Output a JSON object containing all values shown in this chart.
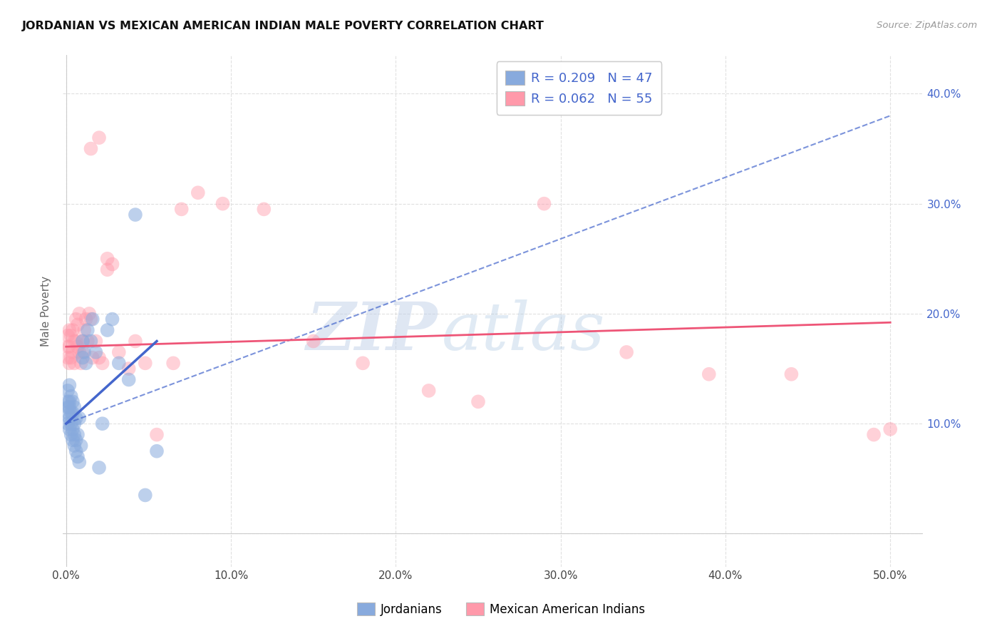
{
  "title": "JORDANIAN VS MEXICAN AMERICAN INDIAN MALE POVERTY CORRELATION CHART",
  "source": "Source: ZipAtlas.com",
  "ylabel": "Male Poverty",
  "x_ticks": [
    0.0,
    0.1,
    0.2,
    0.3,
    0.4,
    0.5
  ],
  "x_tick_labels": [
    "0.0%",
    "10.0%",
    "20.0%",
    "30.0%",
    "40.0%",
    "50.0%"
  ],
  "y_ticks": [
    0.0,
    0.1,
    0.2,
    0.3,
    0.4
  ],
  "y_tick_labels_right": [
    "",
    "10.0%",
    "20.0%",
    "30.0%",
    "40.0%"
  ],
  "xlim": [
    -0.002,
    0.52
  ],
  "ylim": [
    -0.03,
    0.435
  ],
  "legend1_label": "R = 0.209   N = 47",
  "legend2_label": "R = 0.062   N = 55",
  "legend_bottom1": "Jordanians",
  "legend_bottom2": "Mexican American Indians",
  "blue_color": "#88AADD",
  "pink_color": "#FF99AA",
  "blue_line_color": "#4466CC",
  "pink_line_color": "#EE5577",
  "right_tick_color": "#4466CC",
  "watermark_zip": "ZIP",
  "watermark_atlas": "atlas",
  "blue_scatter_x": [
    0.001,
    0.001,
    0.001,
    0.001,
    0.001,
    0.002,
    0.002,
    0.002,
    0.002,
    0.002,
    0.003,
    0.003,
    0.003,
    0.003,
    0.004,
    0.004,
    0.004,
    0.004,
    0.005,
    0.005,
    0.005,
    0.005,
    0.006,
    0.006,
    0.006,
    0.007,
    0.007,
    0.008,
    0.008,
    0.009,
    0.01,
    0.01,
    0.011,
    0.012,
    0.013,
    0.015,
    0.016,
    0.018,
    0.02,
    0.022,
    0.025,
    0.028,
    0.032,
    0.038,
    0.042,
    0.048,
    0.055
  ],
  "blue_scatter_y": [
    0.1,
    0.11,
    0.115,
    0.12,
    0.13,
    0.095,
    0.105,
    0.115,
    0.12,
    0.135,
    0.09,
    0.1,
    0.11,
    0.125,
    0.085,
    0.095,
    0.11,
    0.12,
    0.08,
    0.09,
    0.1,
    0.115,
    0.075,
    0.085,
    0.105,
    0.07,
    0.09,
    0.065,
    0.105,
    0.08,
    0.16,
    0.175,
    0.165,
    0.155,
    0.185,
    0.175,
    0.195,
    0.165,
    0.06,
    0.1,
    0.185,
    0.195,
    0.155,
    0.14,
    0.29,
    0.035,
    0.075
  ],
  "pink_scatter_x": [
    0.001,
    0.001,
    0.001,
    0.002,
    0.002,
    0.002,
    0.003,
    0.003,
    0.004,
    0.004,
    0.005,
    0.005,
    0.006,
    0.006,
    0.007,
    0.007,
    0.008,
    0.008,
    0.009,
    0.01,
    0.01,
    0.011,
    0.012,
    0.013,
    0.014,
    0.015,
    0.016,
    0.018,
    0.02,
    0.022,
    0.025,
    0.028,
    0.032,
    0.038,
    0.042,
    0.048,
    0.055,
    0.065,
    0.07,
    0.08,
    0.095,
    0.12,
    0.15,
    0.18,
    0.22,
    0.25,
    0.29,
    0.34,
    0.39,
    0.44,
    0.49,
    0.5,
    0.015,
    0.02,
    0.025
  ],
  "pink_scatter_y": [
    0.16,
    0.17,
    0.18,
    0.155,
    0.17,
    0.185,
    0.16,
    0.18,
    0.165,
    0.185,
    0.155,
    0.175,
    0.175,
    0.195,
    0.17,
    0.19,
    0.165,
    0.2,
    0.155,
    0.165,
    0.175,
    0.185,
    0.195,
    0.175,
    0.2,
    0.195,
    0.16,
    0.175,
    0.16,
    0.155,
    0.24,
    0.245,
    0.165,
    0.15,
    0.175,
    0.155,
    0.09,
    0.155,
    0.295,
    0.31,
    0.3,
    0.295,
    0.175,
    0.155,
    0.13,
    0.12,
    0.3,
    0.165,
    0.145,
    0.145,
    0.09,
    0.095,
    0.35,
    0.36,
    0.25
  ],
  "blue_solid_trend_x": [
    0.0,
    0.055
  ],
  "blue_solid_trend_y": [
    0.1,
    0.175
  ],
  "blue_dash_trend_x": [
    0.0,
    0.5
  ],
  "blue_dash_trend_y": [
    0.1,
    0.38
  ],
  "pink_solid_trend_x": [
    0.0,
    0.5
  ],
  "pink_solid_trend_y": [
    0.17,
    0.192
  ],
  "grid_color": "#DDDDDD",
  "bg_color": "#FFFFFF"
}
